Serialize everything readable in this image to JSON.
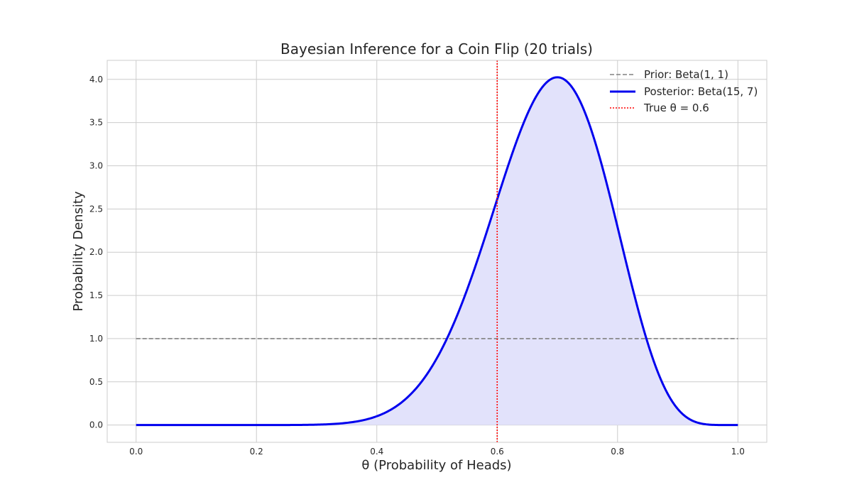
{
  "chart_data": {
    "type": "line",
    "title": "Bayesian Inference for a Coin Flip (20 trials)",
    "xlabel": "θ (Probability of Heads)",
    "ylabel": "Probability Density",
    "xlim": [
      -0.048,
      1.048
    ],
    "ylim": [
      -0.2,
      4.22
    ],
    "xticks": [
      0.0,
      0.2,
      0.4,
      0.6,
      0.8,
      1.0
    ],
    "xtick_labels": [
      "0.0",
      "0.2",
      "0.4",
      "0.6",
      "0.8",
      "1.0"
    ],
    "yticks": [
      0.0,
      0.5,
      1.0,
      1.5,
      2.0,
      2.5,
      3.0,
      3.5,
      4.0
    ],
    "ytick_labels": [
      "0.0",
      "0.5",
      "1.0",
      "1.5",
      "2.0",
      "2.5",
      "3.0",
      "3.5",
      "4.0"
    ],
    "grid": true,
    "legend_position": "upper right",
    "series": [
      {
        "name": "Prior: Beta(1, 1)",
        "distribution": "beta",
        "alpha": 1,
        "beta": 1,
        "x_range": [
          0,
          1
        ],
        "style": "dashed",
        "color": "#808080"
      },
      {
        "name": "Posterior: Beta(15, 7)",
        "distribution": "beta",
        "alpha": 15,
        "beta": 7,
        "x_range": [
          0,
          1
        ],
        "style": "solid",
        "color": "#0000ee",
        "fill": "#e2e2fb"
      }
    ],
    "reference_line": {
      "name": "True θ = 0.6",
      "x": 0.6,
      "style": "dotted",
      "color": "#ff0000"
    }
  }
}
